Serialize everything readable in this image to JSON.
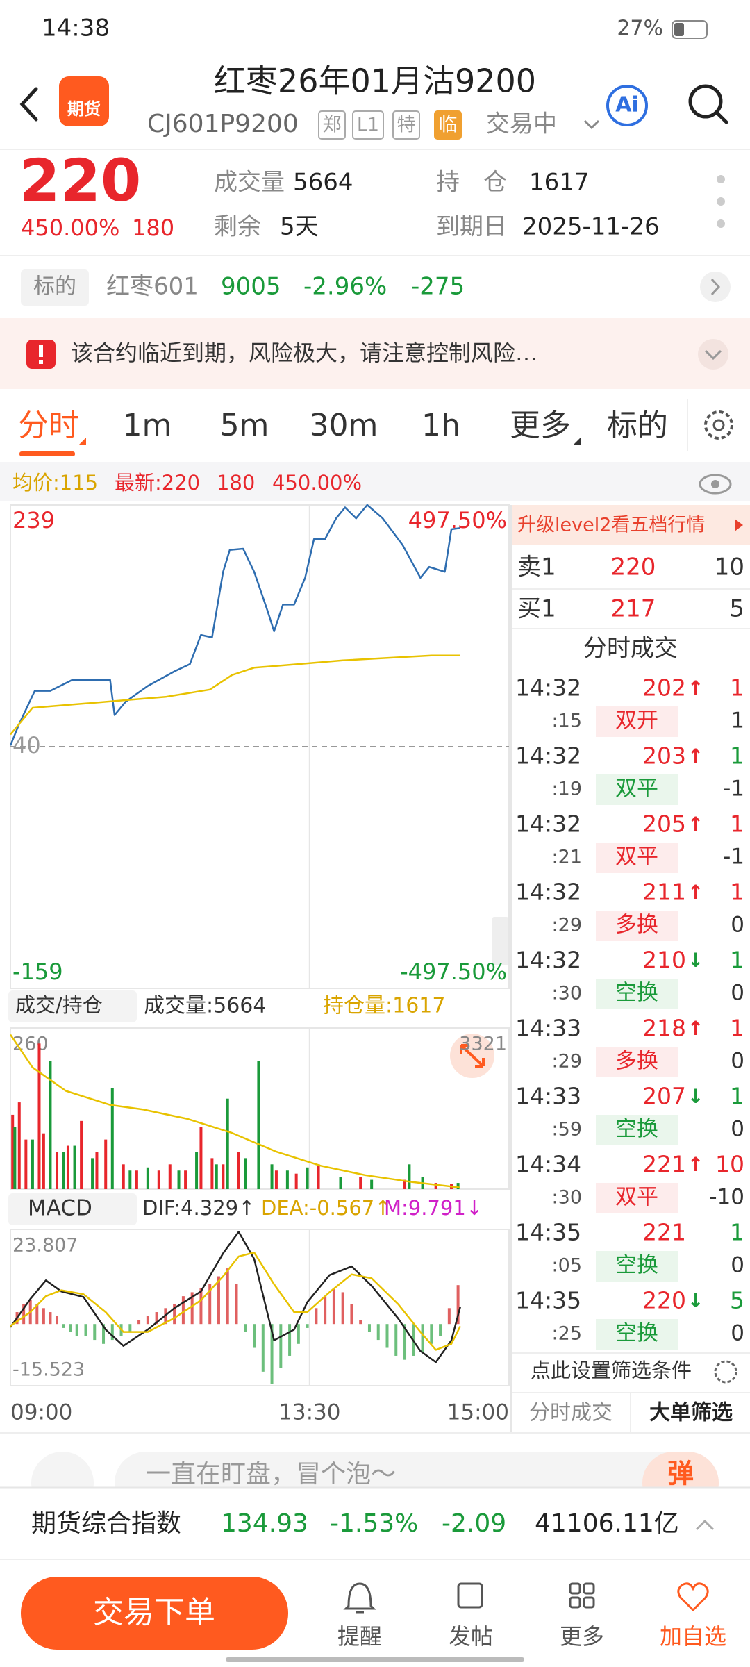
{
  "status_bar": {
    "time": "14:38",
    "battery": "27%"
  },
  "header": {
    "logo": "期货",
    "title": "红枣26年01月沽9200",
    "code": "CJ601P9200",
    "tags": [
      "郑",
      "L1",
      "特",
      "临"
    ],
    "status": "交易中",
    "ai": "Ai"
  },
  "quote": {
    "price": "220",
    "change_pct": "450.00%",
    "change": "180",
    "volume_label": "成交量",
    "volume": "5664",
    "oi_label": "持　仓",
    "oi": "1617",
    "remain_label": "剩余",
    "remain": "5天",
    "expiry_label": "到期日",
    "expiry": "2025-11-26"
  },
  "underlying": {
    "tag": "标的",
    "name": "红枣601",
    "price": "9005",
    "change_pct": "-2.96%",
    "change": "-275"
  },
  "alert": "该合约临近到期，风险极大，请注意控制风险…",
  "tabs": [
    "分时",
    "1m",
    "5m",
    "30m",
    "1h",
    "更多",
    "标的"
  ],
  "info_row": {
    "avg": "均价:115",
    "latest": "最新:220",
    "change": "180",
    "change_pct": "450.00%"
  },
  "chart_data": [
    {
      "type": "line",
      "xlim": [
        0,
        225
      ],
      "xticks": [
        {
          "value": 0,
          "label": "09:00"
        },
        {
          "value": 135,
          "label": "13:30"
        },
        {
          "value": 225,
          "label": "15:00"
        }
      ],
      "ylim": [
        -159,
        239
      ],
      "yticks": [
        239,
        40,
        -159
      ],
      "y2lim": [
        -497.5,
        497.5
      ],
      "y2ticks": [
        {
          "value": 497.5,
          "label": "497.50%"
        },
        {
          "value": -497.5,
          "label": "-497.50%"
        }
      ],
      "series": [
        {
          "type": "line",
          "color": "#2e6db0",
          "x": [
            0,
            4,
            11,
            18,
            28,
            37,
            45,
            47,
            52,
            62,
            74,
            81,
            86,
            91,
            96,
            99,
            105,
            110,
            116,
            119,
            123,
            128,
            133,
            137,
            142,
            147,
            151,
            156,
            161,
            168,
            177,
            185,
            189,
            196,
            199,
            203
          ],
          "values": [
            41,
            59,
            86,
            86,
            95,
            95,
            95,
            66,
            77,
            90,
            102,
            108,
            132,
            130,
            184,
            202,
            203,
            184,
            152,
            135,
            157,
            157,
            179,
            211,
            211,
            228,
            237,
            228,
            239,
            228,
            206,
            179,
            188,
            184,
            219,
            220
          ]
        },
        {
          "type": "line",
          "color": "#e8c200",
          "x": [
            0,
            10,
            30,
            50,
            70,
            90,
            100,
            110,
            130,
            150,
            170,
            190,
            203
          ],
          "values": [
            50,
            72,
            75,
            78,
            81,
            87,
            99,
            105,
            108,
            111,
            113,
            115,
            115
          ]
        }
      ]
    },
    {
      "type": "bar",
      "ylim": [
        0,
        260
      ],
      "yticks": [
        260
      ],
      "y2lim": [
        1600,
        3321
      ],
      "y2ticks": [
        3321
      ],
      "series": [
        {
          "type": "bar",
          "color": "#e8262c",
          "x": [
            1,
            4,
            7,
            13,
            15,
            21,
            26,
            32,
            39,
            43,
            51,
            57,
            67,
            72,
            79,
            86,
            91,
            96,
            103,
            120,
            129,
            139,
            158,
            178,
            192,
            199
          ],
          "values": [
            120,
            140,
            80,
            235,
            90,
            60,
            70,
            110,
            60,
            80,
            40,
            30,
            30,
            40,
            30,
            100,
            50,
            40,
            60,
            30,
            25,
            40,
            20,
            15,
            10,
            8
          ]
        },
        {
          "type": "bar",
          "color": "#1a9a3a",
          "x": [
            2,
            10,
            18,
            24,
            29,
            37,
            46,
            54,
            62,
            76,
            84,
            93,
            98,
            106,
            112,
            118,
            125,
            134,
            149,
            163,
            180,
            186,
            202
          ],
          "values": [
            100,
            80,
            207,
            60,
            70,
            50,
            163,
            30,
            35,
            30,
            60,
            40,
            146,
            50,
            207,
            40,
            30,
            35,
            20,
            15,
            40,
            20,
            10
          ]
        },
        {
          "type": "line",
          "axis": "y2",
          "color": "#e8c200",
          "x": [
            0,
            10,
            25,
            45,
            60,
            80,
            100,
            120,
            140,
            160,
            180,
            203
          ],
          "values": [
            3250,
            2900,
            2650,
            2500,
            2450,
            2350,
            2200,
            2000,
            1850,
            1750,
            1680,
            1617
          ]
        }
      ]
    },
    {
      "type": "bar",
      "ylim": [
        -15.523,
        23.807
      ],
      "yticks": [
        23.807,
        -15.523
      ],
      "series": [
        {
          "type": "bar",
          "colors": {
            "positive": "#e06060",
            "negative": "#6cbf7c"
          },
          "x": [
            3,
            6,
            9,
            12,
            15,
            18,
            21,
            24,
            27,
            30,
            34,
            38,
            42,
            46,
            50,
            54,
            58,
            62,
            66,
            70,
            74,
            78,
            82,
            86,
            90,
            94,
            98,
            102,
            106,
            110,
            114,
            118,
            122,
            126,
            130,
            134,
            138,
            142,
            146,
            150,
            154,
            158,
            162,
            166,
            170,
            174,
            178,
            182,
            186,
            190,
            194,
            198,
            202
          ],
          "values": [
            3,
            5,
            6,
            5,
            4,
            3,
            2,
            -1,
            -2,
            -3,
            -3,
            -4,
            -5,
            -4,
            -3,
            -2,
            1,
            2,
            3,
            4,
            5,
            7,
            8,
            9,
            10,
            12,
            14,
            10,
            -2,
            -6,
            -12,
            -15,
            -11,
            -8,
            -5,
            -1,
            4,
            7,
            9,
            8,
            5,
            1,
            -2,
            -4,
            -6,
            -8,
            -9,
            -8,
            -7,
            -5,
            -3,
            4,
            9.791
          ]
        },
        {
          "type": "line",
          "color": "#222222",
          "x": [
            0,
            9,
            16,
            23,
            33,
            43,
            51,
            62,
            74,
            86,
            96,
            103,
            110,
            119,
            128,
            134,
            144,
            154,
            163,
            175,
            185,
            192,
            199,
            203
          ],
          "values": [
            -0.8,
            6.3,
            11,
            8.2,
            6.8,
            -1.4,
            -5.5,
            -1.4,
            4,
            8.2,
            17.8,
            23.2,
            16.4,
            -4.1,
            -1.4,
            5.5,
            12.3,
            14.5,
            9.6,
            1.4,
            -6.8,
            -9.6,
            -4.1,
            4.329
          ]
        },
        {
          "type": "line",
          "color": "#e8c200",
          "x": [
            0,
            9,
            16,
            23,
            33,
            43,
            51,
            62,
            74,
            86,
            96,
            103,
            110,
            119,
            128,
            134,
            144,
            154,
            163,
            175,
            185,
            192,
            199,
            203
          ],
          "values": [
            -0.5,
            3,
            7,
            8.5,
            7.5,
            3,
            -2,
            -2,
            1.5,
            6,
            12,
            17,
            18,
            10,
            3,
            3,
            8,
            12.5,
            11.5,
            5,
            -2,
            -6.5,
            -5,
            -0.567
          ]
        }
      ]
    }
  ],
  "volume_header": {
    "selector": "成交/持仓",
    "volume": "成交量:5664",
    "oi": "持仓量:1617"
  },
  "macd_header": {
    "selector": "MACD",
    "dif": "DIF:4.329↑",
    "dea": "DEA:-0.567↑",
    "m": "M:9.791↓"
  },
  "order_book": {
    "banner": "升级level2看五档行情",
    "rows": [
      [
        "卖1",
        "220",
        "10"
      ],
      [
        "买1",
        "217",
        "5"
      ]
    ]
  },
  "trades": {
    "title": "分时成交",
    "items": [
      {
        "time": "14:32",
        "sec": ":15",
        "price": "202",
        "direction": "↑",
        "qty": "1",
        "qty_color": "red",
        "type": "双开",
        "type_color": "red",
        "oi_change": "1"
      },
      {
        "time": "14:32",
        "sec": ":19",
        "price": "203",
        "direction": "↑",
        "qty": "1",
        "qty_color": "green",
        "type": "双平",
        "type_color": "green",
        "oi_change": "-1"
      },
      {
        "time": "14:32",
        "sec": ":21",
        "price": "205",
        "direction": "↑",
        "qty": "1",
        "qty_color": "red",
        "type": "双平",
        "type_color": "red",
        "oi_change": "-1"
      },
      {
        "time": "14:32",
        "sec": ":29",
        "price": "211",
        "direction": "↑",
        "qty": "1",
        "qty_color": "red",
        "type": "多换",
        "type_color": "red",
        "oi_change": "0"
      },
      {
        "time": "14:32",
        "sec": ":30",
        "price": "210",
        "direction": "↓",
        "qty": "1",
        "qty_color": "green",
        "type": "空换",
        "type_color": "green",
        "oi_change": "0"
      },
      {
        "time": "14:33",
        "sec": ":29",
        "price": "218",
        "direction": "↑",
        "qty": "1",
        "qty_color": "red",
        "type": "多换",
        "type_color": "red",
        "oi_change": "0"
      },
      {
        "time": "14:33",
        "sec": ":59",
        "price": "207",
        "direction": "↓",
        "qty": "1",
        "qty_color": "green",
        "type": "空换",
        "type_color": "green",
        "oi_change": "0"
      },
      {
        "time": "14:34",
        "sec": ":30",
        "price": "221",
        "direction": "↑",
        "qty": "10",
        "qty_color": "red",
        "type": "双平",
        "type_color": "red",
        "oi_change": "-10"
      },
      {
        "time": "14:35",
        "sec": ":05",
        "price": "221",
        "qty": "1",
        "qty_color": "green",
        "type": "空换",
        "type_color": "green",
        "oi_change": "0"
      },
      {
        "time": "14:35",
        "sec": ":25",
        "price": "220",
        "direction": "↓",
        "qty": "5",
        "qty_color": "green",
        "type": "空换",
        "type_color": "green",
        "oi_change": "0"
      }
    ],
    "filter": "点此设置筛选条件",
    "tabs": [
      "分时成交",
      "大单筛选"
    ]
  },
  "comment": {
    "placeholder": "一直在盯盘，冒个泡～",
    "button": "弹"
  },
  "index_bar": {
    "name": "期货综合指数",
    "value": "134.93",
    "change_pct": "-1.53%",
    "change": "-2.09",
    "amount": "41106.11亿"
  },
  "nav": {
    "trade": "交易下单",
    "items": [
      "提醒",
      "发帖",
      "更多",
      "加自选"
    ]
  }
}
